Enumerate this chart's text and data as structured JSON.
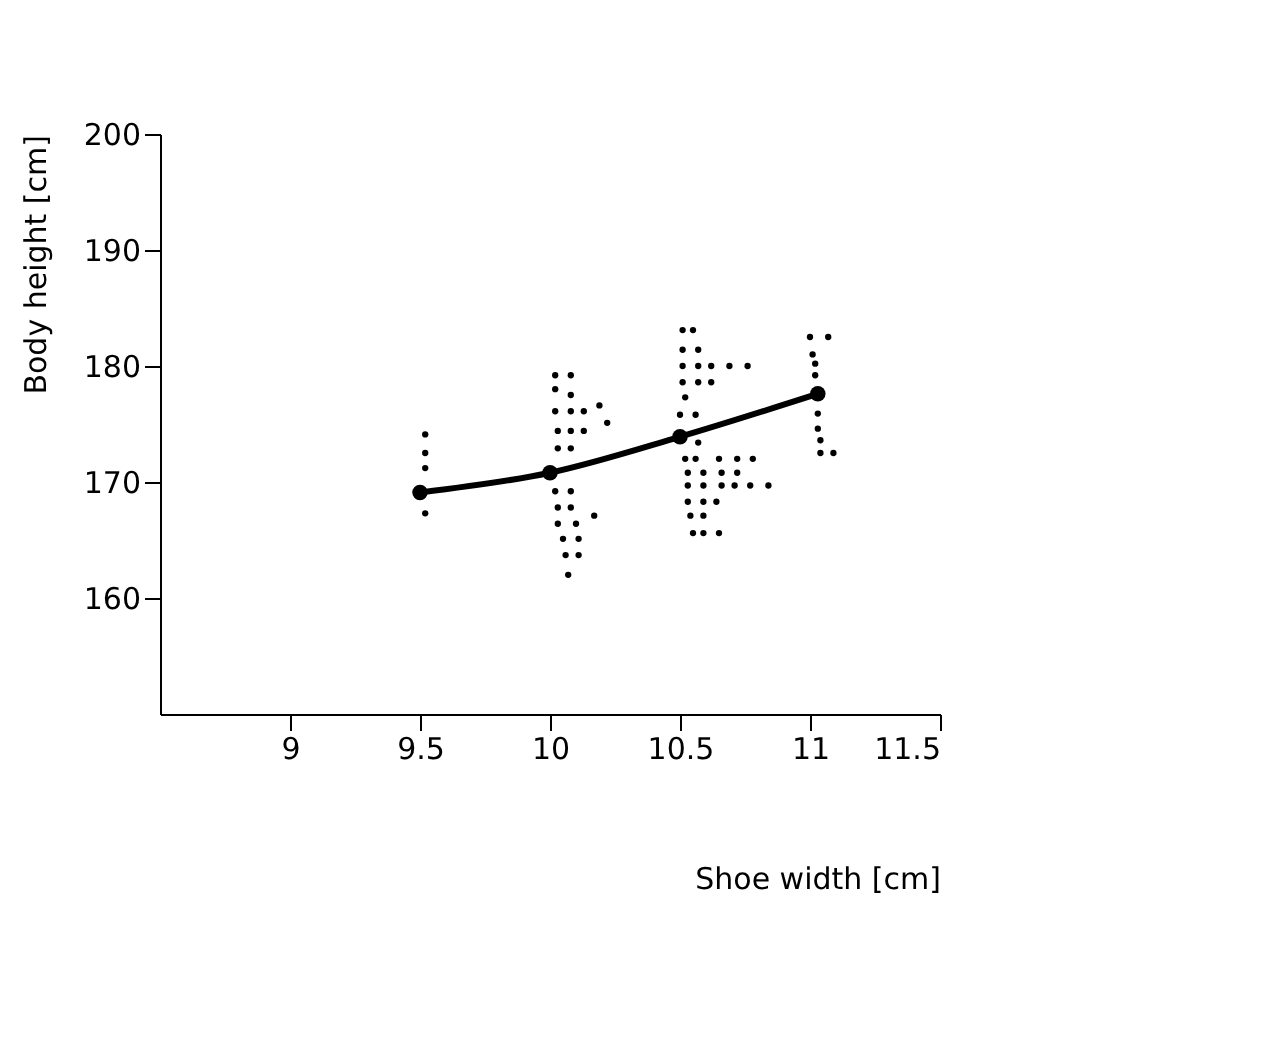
{
  "chart_data": {
    "type": "scatter",
    "xlabel": "Shoe width [cm]",
    "ylabel": "Body height [cm]",
    "xlim": [
      8.5,
      11.5
    ],
    "xticks": [
      9,
      9.5,
      10,
      10.5,
      11,
      11.5
    ],
    "ylim": [
      150,
      200
    ],
    "yticks": [
      160,
      170,
      180,
      190,
      200
    ],
    "grid": false,
    "series": [
      {
        "type": "scatter",
        "color": "#000000",
        "x": [
          9.52,
          9.52,
          9.52,
          9.52,
          10.02,
          10.08,
          10.02,
          10.08,
          10.02,
          10.08,
          10.13,
          10.19,
          10.03,
          10.08,
          10.13,
          10.22,
          10.03,
          10.08,
          10.02,
          10.08,
          10.03,
          10.08,
          10.17,
          10.03,
          10.1,
          10.05,
          10.11,
          10.06,
          10.11,
          10.07,
          10.51,
          10.55,
          10.51,
          10.57,
          10.51,
          10.57,
          10.62,
          10.69,
          10.76,
          10.51,
          10.57,
          10.62,
          10.52,
          10.5,
          10.56,
          10.57,
          10.52,
          10.56,
          10.65,
          10.72,
          10.78,
          10.53,
          10.59,
          10.66,
          10.72,
          10.53,
          10.59,
          10.66,
          10.71,
          10.77,
          10.84,
          10.53,
          10.59,
          10.64,
          10.54,
          10.59,
          10.55,
          10.59,
          10.65,
          11.0,
          11.07,
          11.01,
          11.02,
          11.02,
          11.03,
          11.03,
          11.04,
          11.04,
          11.09
        ],
        "values": [
          174.1,
          172.5,
          171.2,
          167.3,
          179.2,
          179.2,
          178.0,
          177.5,
          176.1,
          176.1,
          176.1,
          176.6,
          174.4,
          174.4,
          174.4,
          175.1,
          172.9,
          172.9,
          169.2,
          169.2,
          167.8,
          167.8,
          167.1,
          166.4,
          166.4,
          165.1,
          165.1,
          163.7,
          163.7,
          162.0,
          183.1,
          183.1,
          181.4,
          181.4,
          180.0,
          180.0,
          180.0,
          180.0,
          180.0,
          178.6,
          178.6,
          178.6,
          177.3,
          175.8,
          175.8,
          173.4,
          172.0,
          172.0,
          172.0,
          172.0,
          172.0,
          170.8,
          170.8,
          170.8,
          170.8,
          169.7,
          169.7,
          169.7,
          169.7,
          169.7,
          169.7,
          168.3,
          168.3,
          168.3,
          167.1,
          167.1,
          165.6,
          165.6,
          165.6,
          182.5,
          182.5,
          181.0,
          180.2,
          179.2,
          175.9,
          174.6,
          173.6,
          172.5,
          172.5
        ]
      },
      {
        "type": "line",
        "color": "#000000",
        "marker": "circle",
        "x": [
          9.5,
          10.0,
          10.5,
          11.03
        ],
        "values": [
          169.1,
          170.8,
          173.9,
          177.6
        ]
      }
    ]
  }
}
